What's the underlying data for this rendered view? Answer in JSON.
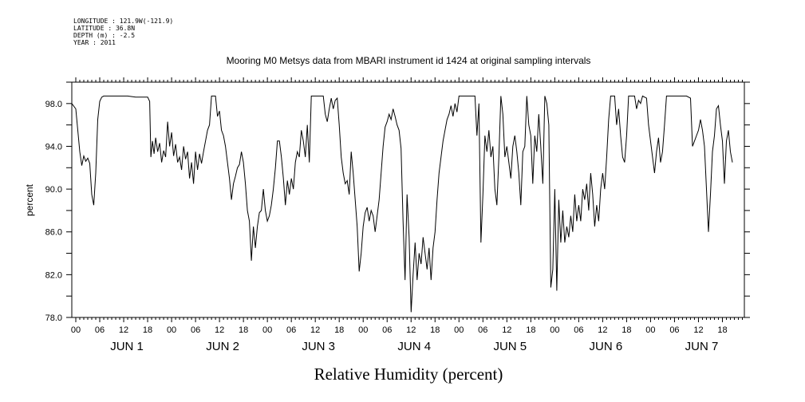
{
  "header": {
    "longitude": "LONGITUDE : 121.9W(-121.9)",
    "latitude": "LATITUDE : 36.8N",
    "depth": "DEPTH (m) : -2.5",
    "year": "YEAR : 2011"
  },
  "chart_data": {
    "type": "line",
    "title": "Mooring M0 Metsys data from MBARI instrument id 1424 at original sampling intervals",
    "xlabel": "Relative Humidity (percent)",
    "ylabel": "percent",
    "ylim": [
      78,
      100
    ],
    "yticks": [
      "78.0",
      "82.0",
      "86.0",
      "90.0",
      "94.0",
      "98.0"
    ],
    "xlim_hours": [
      -1,
      167.5
    ],
    "x_hour_labels": [
      "00",
      "06",
      "12",
      "18",
      "00",
      "06",
      "12",
      "18",
      "00",
      "06",
      "12",
      "18",
      "00",
      "06",
      "12",
      "18",
      "00",
      "06",
      "12",
      "18",
      "00",
      "06",
      "12",
      "18",
      "00",
      "06",
      "12",
      "18"
    ],
    "day_labels": [
      "JUN 1",
      "JUN 2",
      "JUN 3",
      "JUN 4",
      "JUN 5",
      "JUN 6",
      "JUN 7"
    ],
    "grid": false,
    "series": [
      {
        "values": [
          [
            -1,
            98.0
          ],
          [
            0,
            97.5
          ],
          [
            1,
            93.5
          ],
          [
            1.5,
            92.2
          ],
          [
            2,
            93.1
          ],
          [
            2.5,
            92.6
          ],
          [
            3,
            92.9
          ],
          [
            3.5,
            92.4
          ],
          [
            4,
            89.5
          ],
          [
            4.5,
            88.5
          ],
          [
            5,
            91.5
          ],
          [
            5.5,
            96.5
          ],
          [
            6,
            98.2
          ],
          [
            6.5,
            98.6
          ],
          [
            7,
            98.7
          ],
          [
            13,
            98.7
          ],
          [
            15,
            98.6
          ],
          [
            18,
            98.6
          ],
          [
            18.5,
            98.2
          ],
          [
            18.8,
            93.0
          ],
          [
            19.2,
            94.5
          ],
          [
            19.6,
            93.3
          ],
          [
            20,
            94.8
          ],
          [
            20.5,
            93.5
          ],
          [
            21,
            94.3
          ],
          [
            21.5,
            92.5
          ],
          [
            22,
            93.6
          ],
          [
            22.5,
            93.0
          ],
          [
            23,
            96.3
          ],
          [
            23.5,
            94.0
          ],
          [
            24,
            95.3
          ],
          [
            24.5,
            93.1
          ],
          [
            25,
            94.2
          ],
          [
            25.5,
            92.5
          ],
          [
            26,
            93.0
          ],
          [
            26.5,
            91.8
          ],
          [
            27,
            94.0
          ],
          [
            27.5,
            92.8
          ],
          [
            28,
            93.5
          ],
          [
            28.5,
            91.0
          ],
          [
            29,
            92.5
          ],
          [
            29.5,
            90.5
          ],
          [
            30,
            93.5
          ],
          [
            30.5,
            91.8
          ],
          [
            31,
            93.3
          ],
          [
            31.5,
            92.4
          ],
          [
            32,
            93.5
          ],
          [
            32.5,
            94.5
          ],
          [
            33,
            95.5
          ],
          [
            33.5,
            96.0
          ],
          [
            34,
            98.7
          ],
          [
            35,
            98.7
          ],
          [
            35.5,
            96.8
          ],
          [
            36,
            97.3
          ],
          [
            36.5,
            95.5
          ],
          [
            37,
            95.0
          ],
          [
            37.5,
            94.0
          ],
          [
            38,
            92.5
          ],
          [
            38.5,
            91.0
          ],
          [
            39,
            89.0
          ],
          [
            39.5,
            90.5
          ],
          [
            40,
            91.2
          ],
          [
            40.5,
            92.0
          ],
          [
            41,
            92.3
          ],
          [
            41.5,
            93.5
          ],
          [
            42,
            92.5
          ],
          [
            42.5,
            90.5
          ],
          [
            43,
            88.0
          ],
          [
            43.5,
            87.0
          ],
          [
            44,
            83.3
          ],
          [
            44.5,
            86.5
          ],
          [
            45,
            84.5
          ],
          [
            45.5,
            86.5
          ],
          [
            46,
            87.8
          ],
          [
            46.5,
            88.0
          ],
          [
            47,
            90.0
          ],
          [
            47.5,
            88.0
          ],
          [
            48,
            87.0
          ],
          [
            48.5,
            87.5
          ],
          [
            49,
            88.5
          ],
          [
            49.5,
            90.0
          ],
          [
            50,
            92.0
          ],
          [
            50.5,
            94.5
          ],
          [
            51,
            94.5
          ],
          [
            51.5,
            93.0
          ],
          [
            52,
            91.0
          ],
          [
            52.5,
            88.5
          ],
          [
            53,
            90.8
          ],
          [
            53.5,
            89.5
          ],
          [
            54,
            91.0
          ],
          [
            54.5,
            90.0
          ],
          [
            55,
            92.5
          ],
          [
            55.5,
            93.5
          ],
          [
            56,
            93.0
          ],
          [
            56.5,
            95.5
          ],
          [
            57,
            94.5
          ],
          [
            57.5,
            93.0
          ],
          [
            58,
            96.0
          ],
          [
            58.5,
            92.5
          ],
          [
            59,
            98.7
          ],
          [
            61,
            98.7
          ],
          [
            62,
            98.7
          ],
          [
            62.5,
            97.0
          ],
          [
            63,
            96.3
          ],
          [
            63.5,
            97.5
          ],
          [
            64,
            98.5
          ],
          [
            64.5,
            97.5
          ],
          [
            65,
            98.3
          ],
          [
            65.5,
            98.5
          ],
          [
            66,
            96.0
          ],
          [
            66.5,
            93.0
          ],
          [
            67,
            91.5
          ],
          [
            67.5,
            90.5
          ],
          [
            68,
            90.8
          ],
          [
            68.5,
            89.5
          ],
          [
            69,
            93.5
          ],
          [
            69.5,
            91.5
          ],
          [
            70,
            89.0
          ],
          [
            70.5,
            86.5
          ],
          [
            71,
            82.3
          ],
          [
            71.5,
            84.0
          ],
          [
            72,
            86.5
          ],
          [
            72.5,
            87.8
          ],
          [
            73,
            88.3
          ],
          [
            73.5,
            87.0
          ],
          [
            74,
            88.0
          ],
          [
            74.5,
            87.5
          ],
          [
            75,
            86.0
          ],
          [
            75.5,
            87.5
          ],
          [
            76,
            89.0
          ],
          [
            76.5,
            91.5
          ],
          [
            77,
            94.0
          ],
          [
            77.5,
            95.8
          ],
          [
            78,
            96.3
          ],
          [
            78.5,
            97.0
          ],
          [
            79,
            96.5
          ],
          [
            79.5,
            97.5
          ],
          [
            80,
            96.8
          ],
          [
            80.5,
            96.0
          ],
          [
            81,
            95.5
          ],
          [
            81.5,
            93.8
          ],
          [
            82,
            87.0
          ],
          [
            82.5,
            81.5
          ],
          [
            83,
            89.5
          ],
          [
            83.5,
            85.5
          ],
          [
            84,
            78.5
          ],
          [
            84.5,
            82.0
          ],
          [
            85,
            85.0
          ],
          [
            85.5,
            81.5
          ],
          [
            86,
            84.0
          ],
          [
            86.5,
            83.0
          ],
          [
            87,
            85.5
          ],
          [
            87.5,
            84.0
          ],
          [
            88,
            82.5
          ],
          [
            88.5,
            84.5
          ],
          [
            89,
            81.5
          ],
          [
            89.5,
            84.5
          ],
          [
            90,
            86.0
          ],
          [
            90.5,
            89.0
          ],
          [
            91,
            91.5
          ],
          [
            91.5,
            93.0
          ],
          [
            92,
            94.5
          ],
          [
            92.5,
            95.5
          ],
          [
            93,
            96.5
          ],
          [
            93.5,
            97.0
          ],
          [
            94,
            97.8
          ],
          [
            94.5,
            96.8
          ],
          [
            95,
            98.0
          ],
          [
            95.5,
            97.2
          ],
          [
            96,
            98.7
          ],
          [
            98,
            98.7
          ],
          [
            100,
            98.7
          ],
          [
            100.5,
            95.0
          ],
          [
            101,
            98.0
          ],
          [
            101.5,
            85.0
          ],
          [
            102,
            89.5
          ],
          [
            102.5,
            95.0
          ],
          [
            103,
            93.5
          ],
          [
            103.5,
            95.5
          ],
          [
            104,
            93.0
          ],
          [
            104.5,
            94.0
          ],
          [
            105,
            90.0
          ],
          [
            105.5,
            88.5
          ],
          [
            106,
            93.0
          ],
          [
            106.5,
            98.7
          ],
          [
            107,
            97.0
          ],
          [
            107.5,
            93.0
          ],
          [
            108,
            94.0
          ],
          [
            108.5,
            92.5
          ],
          [
            109,
            91.0
          ],
          [
            109.5,
            94.0
          ],
          [
            110,
            95.0
          ],
          [
            110.5,
            93.5
          ],
          [
            111,
            91.5
          ],
          [
            111.5,
            88.5
          ],
          [
            112,
            93.5
          ],
          [
            112.5,
            94.0
          ],
          [
            113,
            98.7
          ],
          [
            113.5,
            96.0
          ],
          [
            114,
            95.0
          ],
          [
            114.5,
            90.5
          ],
          [
            115,
            95.0
          ],
          [
            115.5,
            93.5
          ],
          [
            116,
            97.0
          ],
          [
            116.5,
            94.0
          ],
          [
            117,
            90.5
          ],
          [
            117.5,
            98.7
          ],
          [
            118,
            98.0
          ],
          [
            118.5,
            96.0
          ],
          [
            119,
            80.8
          ],
          [
            119.5,
            82.5
          ],
          [
            120,
            90.0
          ],
          [
            120.5,
            80.5
          ],
          [
            121,
            89.0
          ],
          [
            121.5,
            85.0
          ],
          [
            122,
            88.0
          ],
          [
            122.5,
            85.0
          ],
          [
            123,
            86.5
          ],
          [
            123.5,
            85.5
          ],
          [
            124,
            87.5
          ],
          [
            124.5,
            86.0
          ],
          [
            125,
            89.5
          ],
          [
            125.5,
            87.0
          ],
          [
            126,
            88.5
          ],
          [
            126.5,
            87.0
          ],
          [
            127,
            90.0
          ],
          [
            127.5,
            89.0
          ],
          [
            128,
            90.5
          ],
          [
            128.5,
            88.0
          ],
          [
            129,
            91.5
          ],
          [
            129.5,
            89.5
          ],
          [
            130,
            86.5
          ],
          [
            130.5,
            88.5
          ],
          [
            131,
            87.0
          ],
          [
            131.5,
            90.0
          ],
          [
            132,
            91.5
          ],
          [
            132.5,
            90.0
          ],
          [
            133,
            93.0
          ],
          [
            133.5,
            96.5
          ],
          [
            134,
            98.7
          ],
          [
            135,
            98.7
          ],
          [
            135.5,
            96.0
          ],
          [
            136,
            97.5
          ],
          [
            136.5,
            95.0
          ],
          [
            137,
            93.0
          ],
          [
            137.5,
            92.5
          ],
          [
            138,
            95.0
          ],
          [
            138.5,
            98.7
          ],
          [
            140,
            98.7
          ],
          [
            140.5,
            97.5
          ],
          [
            141,
            98.3
          ],
          [
            141.5,
            98.0
          ],
          [
            142,
            98.7
          ],
          [
            143,
            98.5
          ],
          [
            143.5,
            96.0
          ],
          [
            144,
            94.5
          ],
          [
            144.5,
            93.0
          ],
          [
            145,
            91.5
          ],
          [
            145.5,
            93.5
          ],
          [
            146,
            94.8
          ],
          [
            146.5,
            92.5
          ],
          [
            147,
            93.5
          ],
          [
            147.5,
            96.0
          ],
          [
            148,
            98.7
          ],
          [
            153,
            98.7
          ],
          [
            154,
            98.5
          ],
          [
            154.5,
            94.0
          ],
          [
            155,
            94.5
          ],
          [
            155.5,
            95.0
          ],
          [
            156,
            95.5
          ],
          [
            156.5,
            96.5
          ],
          [
            157,
            95.5
          ],
          [
            157.5,
            94.0
          ],
          [
            158,
            90.0
          ],
          [
            158.5,
            86.0
          ],
          [
            159,
            89.5
          ],
          [
            159.5,
            93.5
          ],
          [
            160,
            95.0
          ],
          [
            160.5,
            97.5
          ],
          [
            161,
            97.8
          ],
          [
            161.5,
            96.0
          ],
          [
            162,
            94.5
          ],
          [
            162.5,
            90.5
          ],
          [
            163,
            94.5
          ],
          [
            163.5,
            95.5
          ],
          [
            164,
            93.5
          ],
          [
            164.5,
            92.5
          ]
        ]
      }
    ]
  }
}
